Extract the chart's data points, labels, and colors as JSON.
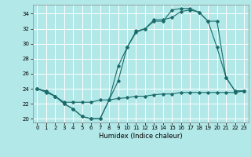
{
  "xlabel": "Humidex (Indice chaleur)",
  "bg_color": "#b3e8e8",
  "grid_color": "#ffffff",
  "line_color": "#1a6b6b",
  "xlim": [
    -0.5,
    23.5
  ],
  "ylim": [
    19.5,
    35.2
  ],
  "yticks": [
    20,
    22,
    24,
    26,
    28,
    30,
    32,
    34
  ],
  "xticks": [
    0,
    1,
    2,
    3,
    4,
    5,
    6,
    7,
    8,
    9,
    10,
    11,
    12,
    13,
    14,
    15,
    16,
    17,
    18,
    19,
    20,
    21,
    22,
    23
  ],
  "line1_x": [
    0,
    1,
    2,
    3,
    4,
    5,
    6,
    7,
    8,
    9,
    10,
    11,
    12,
    13,
    14,
    15,
    16,
    17,
    18,
    19,
    20,
    21,
    22,
    23
  ],
  "line1_y": [
    24,
    23.7,
    23.0,
    22.0,
    21.3,
    20.3,
    20.0,
    20.0,
    22.5,
    25.0,
    29.5,
    31.5,
    32.0,
    33.0,
    33.0,
    34.5,
    34.7,
    34.7,
    34.2,
    33.0,
    29.5,
    25.5,
    23.7,
    23.7
  ],
  "line2_x": [
    0,
    1,
    2,
    3,
    4,
    5,
    6,
    7,
    8,
    9,
    10,
    11,
    12,
    13,
    14,
    15,
    16,
    17,
    18,
    19,
    20,
    21,
    22,
    23
  ],
  "line2_y": [
    24,
    23.7,
    23.0,
    22.0,
    21.3,
    20.3,
    20.0,
    20.0,
    22.5,
    27.0,
    29.5,
    31.7,
    32.0,
    33.2,
    33.2,
    33.5,
    34.3,
    34.5,
    34.2,
    33.0,
    33.0,
    25.5,
    23.7,
    23.7
  ],
  "line3_x": [
    0,
    1,
    2,
    3,
    4,
    5,
    6,
    7,
    8,
    9,
    10,
    11,
    12,
    13,
    14,
    15,
    16,
    17,
    18,
    19,
    20,
    21,
    22,
    23
  ],
  "line3_y": [
    24,
    23.5,
    23.0,
    22.2,
    22.2,
    22.2,
    22.2,
    22.5,
    22.5,
    22.7,
    22.8,
    23.0,
    23.0,
    23.2,
    23.3,
    23.3,
    23.5,
    23.5,
    23.5,
    23.5,
    23.5,
    23.5,
    23.5,
    23.7
  ]
}
